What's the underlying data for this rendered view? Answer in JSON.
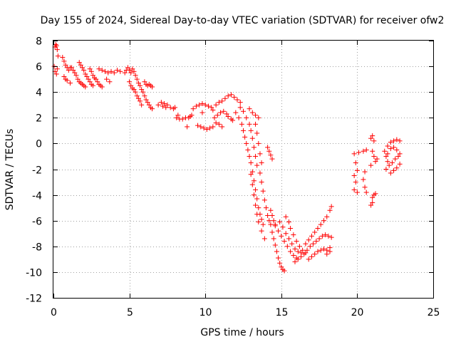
{
  "chart_data": {
    "type": "scatter",
    "title": "Day 155 of 2024, Sidereal Day-to-day VTEC variation (SDTVAR) for receiver ofw2",
    "xlabel": "GPS time / hours",
    "ylabel": "SDTVAR / TECUs",
    "xlim": [
      0,
      25
    ],
    "ylim": [
      -12,
      8
    ],
    "xticks": [
      "0",
      "5",
      "10",
      "15",
      "20",
      "25"
    ],
    "yticks": [
      "-12",
      "-10",
      "-8",
      "-6",
      "-4",
      "-2",
      "0",
      "2",
      "4",
      "6",
      "8"
    ],
    "grid": true,
    "marker": "+",
    "marker_color": "#ff0000",
    "series": [
      {
        "name": "SDTVAR",
        "points": [
          [
            0.1,
            7.5
          ],
          [
            0.15,
            7.7
          ],
          [
            0.2,
            7.6
          ],
          [
            0.25,
            7.3
          ],
          [
            0.3,
            6.8
          ],
          [
            0.05,
            6.0
          ],
          [
            0.1,
            5.6
          ],
          [
            0.2,
            5.4
          ],
          [
            0.25,
            5.8
          ],
          [
            0.6,
            6.7
          ],
          [
            0.7,
            6.4
          ],
          [
            0.8,
            6.1
          ],
          [
            0.9,
            5.9
          ],
          [
            1.0,
            5.7
          ],
          [
            1.1,
            5.9
          ],
          [
            0.7,
            5.2
          ],
          [
            0.8,
            5.0
          ],
          [
            0.9,
            4.9
          ],
          [
            1.1,
            4.7
          ],
          [
            1.2,
            5.9
          ],
          [
            1.3,
            5.7
          ],
          [
            1.4,
            5.5
          ],
          [
            1.5,
            5.3
          ],
          [
            1.6,
            5.0
          ],
          [
            1.7,
            4.8
          ],
          [
            1.8,
            4.7
          ],
          [
            1.9,
            4.6
          ],
          [
            2.0,
            4.5
          ],
          [
            2.1,
            4.4
          ],
          [
            1.7,
            6.3
          ],
          [
            1.8,
            6.1
          ],
          [
            1.9,
            5.9
          ],
          [
            2.0,
            5.7
          ],
          [
            2.1,
            5.4
          ],
          [
            2.2,
            5.2
          ],
          [
            2.3,
            5.0
          ],
          [
            2.4,
            4.8
          ],
          [
            2.5,
            4.6
          ],
          [
            2.6,
            4.5
          ],
          [
            2.4,
            5.8
          ],
          [
            2.5,
            5.6
          ],
          [
            2.6,
            5.3
          ],
          [
            2.7,
            5.1
          ],
          [
            2.8,
            5.0
          ],
          [
            2.9,
            4.8
          ],
          [
            3.0,
            4.6
          ],
          [
            3.1,
            4.5
          ],
          [
            3.2,
            4.4
          ],
          [
            3.0,
            5.8
          ],
          [
            3.2,
            5.7
          ],
          [
            3.4,
            5.6
          ],
          [
            3.6,
            5.5
          ],
          [
            3.8,
            5.6
          ],
          [
            4.0,
            5.5
          ],
          [
            4.2,
            5.7
          ],
          [
            4.4,
            5.6
          ],
          [
            3.5,
            5.0
          ],
          [
            3.7,
            4.8
          ],
          [
            4.7,
            5.5
          ],
          [
            4.8,
            5.7
          ],
          [
            4.9,
            5.9
          ],
          [
            5.0,
            5.7
          ],
          [
            5.1,
            5.5
          ],
          [
            5.2,
            5.8
          ],
          [
            5.3,
            5.6
          ],
          [
            5.4,
            5.3
          ],
          [
            5.5,
            5.0
          ],
          [
            5.0,
            4.8
          ],
          [
            5.1,
            4.5
          ],
          [
            5.2,
            4.3
          ],
          [
            5.3,
            4.2
          ],
          [
            5.4,
            4.0
          ],
          [
            5.5,
            3.7
          ],
          [
            5.6,
            3.5
          ],
          [
            5.7,
            3.3
          ],
          [
            5.8,
            3.0
          ],
          [
            5.6,
            4.7
          ],
          [
            5.7,
            4.5
          ],
          [
            5.8,
            4.2
          ],
          [
            5.9,
            4.0
          ],
          [
            6.0,
            3.7
          ],
          [
            6.1,
            3.4
          ],
          [
            6.2,
            3.2
          ],
          [
            6.3,
            3.0
          ],
          [
            6.4,
            2.8
          ],
          [
            6.5,
            2.7
          ],
          [
            6.0,
            4.8
          ],
          [
            6.1,
            4.6
          ],
          [
            6.2,
            4.5
          ],
          [
            6.4,
            4.5
          ],
          [
            6.3,
            4.6
          ],
          [
            6.5,
            4.4
          ],
          [
            6.9,
            3.0
          ],
          [
            7.1,
            3.2
          ],
          [
            7.3,
            3.1
          ],
          [
            7.5,
            3.0
          ],
          [
            7.7,
            2.8
          ],
          [
            7.9,
            2.7
          ],
          [
            8.0,
            2.8
          ],
          [
            7.2,
            2.9
          ],
          [
            7.4,
            2.8
          ],
          [
            8.1,
            2.0
          ],
          [
            8.3,
            1.9
          ],
          [
            8.5,
            1.9
          ],
          [
            8.7,
            2.0
          ],
          [
            8.9,
            2.0
          ],
          [
            9.0,
            2.1
          ],
          [
            9.1,
            2.2
          ],
          [
            8.2,
            2.2
          ],
          [
            8.8,
            1.3
          ],
          [
            9.2,
            2.7
          ],
          [
            9.4,
            2.9
          ],
          [
            9.6,
            3.0
          ],
          [
            9.8,
            3.1
          ],
          [
            10.0,
            3.0
          ],
          [
            10.2,
            2.9
          ],
          [
            10.4,
            2.8
          ],
          [
            10.5,
            2.6
          ],
          [
            9.8,
            2.4
          ],
          [
            9.5,
            1.4
          ],
          [
            9.7,
            1.3
          ],
          [
            9.9,
            1.2
          ],
          [
            10.1,
            1.1
          ],
          [
            10.3,
            1.2
          ],
          [
            10.5,
            1.3
          ],
          [
            10.7,
            1.6
          ],
          [
            10.9,
            1.5
          ],
          [
            11.1,
            1.3
          ],
          [
            10.6,
            2.0
          ],
          [
            10.8,
            2.2
          ],
          [
            11.0,
            2.4
          ],
          [
            11.2,
            2.5
          ],
          [
            11.4,
            2.3
          ],
          [
            11.5,
            2.1
          ],
          [
            11.7,
            1.9
          ],
          [
            11.8,
            1.8
          ],
          [
            10.7,
            3.0
          ],
          [
            10.9,
            3.2
          ],
          [
            11.1,
            3.3
          ],
          [
            11.3,
            3.5
          ],
          [
            11.5,
            3.7
          ],
          [
            11.7,
            3.8
          ],
          [
            11.9,
            3.6
          ],
          [
            12.1,
            3.4
          ],
          [
            12.3,
            3.2
          ],
          [
            12.0,
            2.4
          ],
          [
            12.2,
            2.0
          ],
          [
            12.4,
            1.5
          ],
          [
            12.5,
            1.0
          ],
          [
            12.6,
            0.5
          ],
          [
            12.7,
            0.0
          ],
          [
            12.8,
            -0.5
          ],
          [
            12.9,
            -1.0
          ],
          [
            13.0,
            -1.5
          ],
          [
            12.3,
            2.8
          ],
          [
            12.5,
            2.5
          ],
          [
            12.7,
            2.0
          ],
          [
            12.9,
            1.5
          ],
          [
            13.0,
            1.0
          ],
          [
            13.1,
            0.4
          ],
          [
            13.2,
            -0.3
          ],
          [
            13.3,
            -1.0
          ],
          [
            13.4,
            -1.7
          ],
          [
            12.9,
            2.7
          ],
          [
            13.1,
            2.4
          ],
          [
            13.3,
            2.2
          ],
          [
            13.5,
            2.0
          ],
          [
            13.3,
            1.5
          ],
          [
            13.4,
            0.8
          ],
          [
            13.5,
            0.0
          ],
          [
            13.6,
            -0.8
          ],
          [
            13.7,
            -1.5
          ],
          [
            13.1,
            -2.2
          ],
          [
            13.2,
            -2.9
          ],
          [
            13.3,
            -3.6
          ],
          [
            13.4,
            -4.3
          ],
          [
            13.5,
            -5.0
          ],
          [
            13.6,
            -5.5
          ],
          [
            13.7,
            -5.9
          ],
          [
            13.8,
            -6.3
          ],
          [
            13.0,
            -2.4
          ],
          [
            13.1,
            -3.2
          ],
          [
            13.2,
            -4.0
          ],
          [
            13.3,
            -4.8
          ],
          [
            13.4,
            -5.5
          ],
          [
            13.5,
            -6.1
          ],
          [
            13.7,
            -6.8
          ],
          [
            13.9,
            -7.4
          ],
          [
            13.6,
            -2.3
          ],
          [
            13.7,
            -3.0
          ],
          [
            13.8,
            -3.7
          ],
          [
            13.9,
            -4.4
          ],
          [
            14.0,
            -5.0
          ],
          [
            14.1,
            -5.6
          ],
          [
            14.2,
            -6.0
          ],
          [
            14.3,
            -6.3
          ],
          [
            14.1,
            -0.3
          ],
          [
            14.2,
            -0.6
          ],
          [
            14.3,
            -0.9
          ],
          [
            14.4,
            -1.2
          ],
          [
            14.3,
            -5.2
          ],
          [
            14.4,
            -5.6
          ],
          [
            14.5,
            -6.0
          ],
          [
            14.6,
            -6.3
          ],
          [
            14.4,
            -6.9
          ],
          [
            14.5,
            -7.4
          ],
          [
            14.6,
            -7.9
          ],
          [
            14.7,
            -8.4
          ],
          [
            14.8,
            -8.9
          ],
          [
            14.9,
            -9.3
          ],
          [
            15.0,
            -9.6
          ],
          [
            15.1,
            -9.8
          ],
          [
            15.2,
            -9.9
          ],
          [
            14.6,
            -6.4
          ],
          [
            14.8,
            -6.8
          ],
          [
            15.0,
            -7.2
          ],
          [
            15.2,
            -7.6
          ],
          [
            15.4,
            -8.0
          ],
          [
            15.6,
            -8.4
          ],
          [
            15.8,
            -8.7
          ],
          [
            16.0,
            -8.9
          ],
          [
            14.9,
            -6.1
          ],
          [
            15.1,
            -6.5
          ],
          [
            15.3,
            -7.0
          ],
          [
            15.5,
            -7.4
          ],
          [
            15.7,
            -7.8
          ],
          [
            15.9,
            -8.2
          ],
          [
            16.1,
            -8.4
          ],
          [
            16.3,
            -8.5
          ],
          [
            15.3,
            -5.7
          ],
          [
            15.5,
            -6.1
          ],
          [
            15.6,
            -6.6
          ],
          [
            15.8,
            -7.1
          ],
          [
            16.0,
            -7.6
          ],
          [
            16.2,
            -8.0
          ],
          [
            16.4,
            -8.3
          ],
          [
            16.6,
            -8.5
          ],
          [
            15.9,
            -9.2
          ],
          [
            16.1,
            -9.0
          ],
          [
            16.3,
            -8.8
          ],
          [
            16.5,
            -8.6
          ],
          [
            16.7,
            -8.3
          ],
          [
            16.9,
            -8.0
          ],
          [
            17.1,
            -7.8
          ],
          [
            17.3,
            -7.6
          ],
          [
            16.6,
            -7.8
          ],
          [
            16.8,
            -7.5
          ],
          [
            17.0,
            -7.2
          ],
          [
            17.2,
            -6.9
          ],
          [
            17.4,
            -6.6
          ],
          [
            17.6,
            -6.3
          ],
          [
            17.8,
            -6.0
          ],
          [
            18.0,
            -5.7
          ],
          [
            18.2,
            -5.2
          ],
          [
            18.3,
            -4.9
          ],
          [
            16.8,
            -9.0
          ],
          [
            17.0,
            -8.8
          ],
          [
            17.2,
            -8.6
          ],
          [
            17.4,
            -8.4
          ],
          [
            17.6,
            -8.3
          ],
          [
            17.8,
            -8.2
          ],
          [
            18.0,
            -8.3
          ],
          [
            18.2,
            -8.4
          ],
          [
            17.5,
            -7.4
          ],
          [
            17.7,
            -7.2
          ],
          [
            17.9,
            -7.1
          ],
          [
            18.1,
            -7.2
          ],
          [
            18.3,
            -7.3
          ],
          [
            18.0,
            -8.6
          ],
          [
            18.2,
            -8.1
          ],
          [
            19.8,
            -0.8
          ],
          [
            19.9,
            -1.5
          ],
          [
            19.8,
            -2.5
          ],
          [
            19.9,
            -3.0
          ],
          [
            20.0,
            -3.8
          ],
          [
            19.8,
            -3.6
          ],
          [
            20.1,
            -0.7
          ],
          [
            20.0,
            -2.1
          ],
          [
            20.4,
            -2.8
          ],
          [
            20.5,
            -3.4
          ],
          [
            20.6,
            -3.8
          ],
          [
            20.5,
            -2.2
          ],
          [
            20.6,
            -0.5
          ],
          [
            20.4,
            -0.6
          ],
          [
            20.9,
            0.4
          ],
          [
            21.0,
            0.6
          ],
          [
            21.1,
            0.2
          ],
          [
            21.0,
            -0.6
          ],
          [
            21.1,
            -1.0
          ],
          [
            21.2,
            -1.4
          ],
          [
            21.3,
            -1.2
          ],
          [
            20.9,
            -1.7
          ],
          [
            21.0,
            -4.2
          ],
          [
            21.1,
            -4.0
          ],
          [
            21.2,
            -3.9
          ],
          [
            21.0,
            -4.6
          ],
          [
            20.9,
            -4.8
          ],
          [
            21.8,
            -0.6
          ],
          [
            21.9,
            -1.0
          ],
          [
            22.0,
            -1.4
          ],
          [
            22.1,
            -1.7
          ],
          [
            21.9,
            -2.0
          ],
          [
            22.0,
            -0.8
          ],
          [
            22.0,
            -0.2
          ],
          [
            22.2,
            0.1
          ],
          [
            22.4,
            0.2
          ],
          [
            22.6,
            0.3
          ],
          [
            22.8,
            0.2
          ],
          [
            22.2,
            -0.4
          ],
          [
            22.4,
            -0.3
          ],
          [
            22.6,
            -0.5
          ],
          [
            22.8,
            -0.8
          ],
          [
            22.2,
            -2.3
          ],
          [
            22.4,
            -2.1
          ],
          [
            22.6,
            -1.9
          ],
          [
            22.8,
            -1.6
          ],
          [
            22.3,
            -1.5
          ],
          [
            22.5,
            -1.2
          ],
          [
            22.7,
            -1.0
          ]
        ]
      }
    ]
  }
}
